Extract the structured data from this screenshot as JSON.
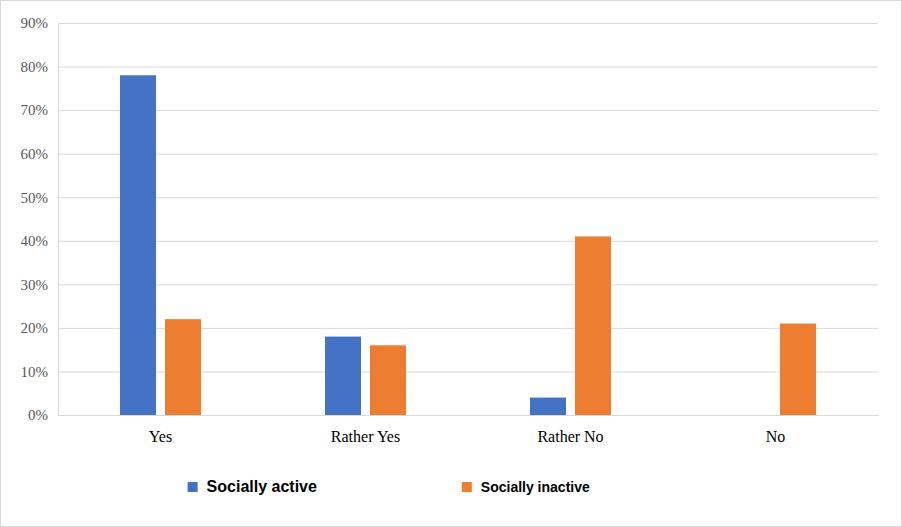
{
  "chart_data": {
    "type": "bar",
    "categories": [
      "Yes",
      "Rather Yes",
      "Rather No",
      "No"
    ],
    "series": [
      {
        "name": "Socially active",
        "color": "#4472c4",
        "values": [
          78,
          18,
          4,
          0
        ]
      },
      {
        "name": "Socially inactive",
        "color": "#ed7d31",
        "values": [
          22,
          16,
          41,
          21
        ]
      }
    ],
    "ylim": [
      0,
      90
    ],
    "yticks": [
      {
        "value": 0,
        "label": "0%"
      },
      {
        "value": 10,
        "label": "10%"
      },
      {
        "value": 20,
        "label": "20%"
      },
      {
        "value": 30,
        "label": "30%"
      },
      {
        "value": 40,
        "label": "40%"
      },
      {
        "value": 50,
        "label": "50%"
      },
      {
        "value": 60,
        "label": "60%"
      },
      {
        "value": 70,
        "label": "70%"
      },
      {
        "value": 80,
        "label": "80%"
      },
      {
        "value": 90,
        "label": "90%"
      }
    ],
    "grid": true,
    "legend": "bottom"
  }
}
